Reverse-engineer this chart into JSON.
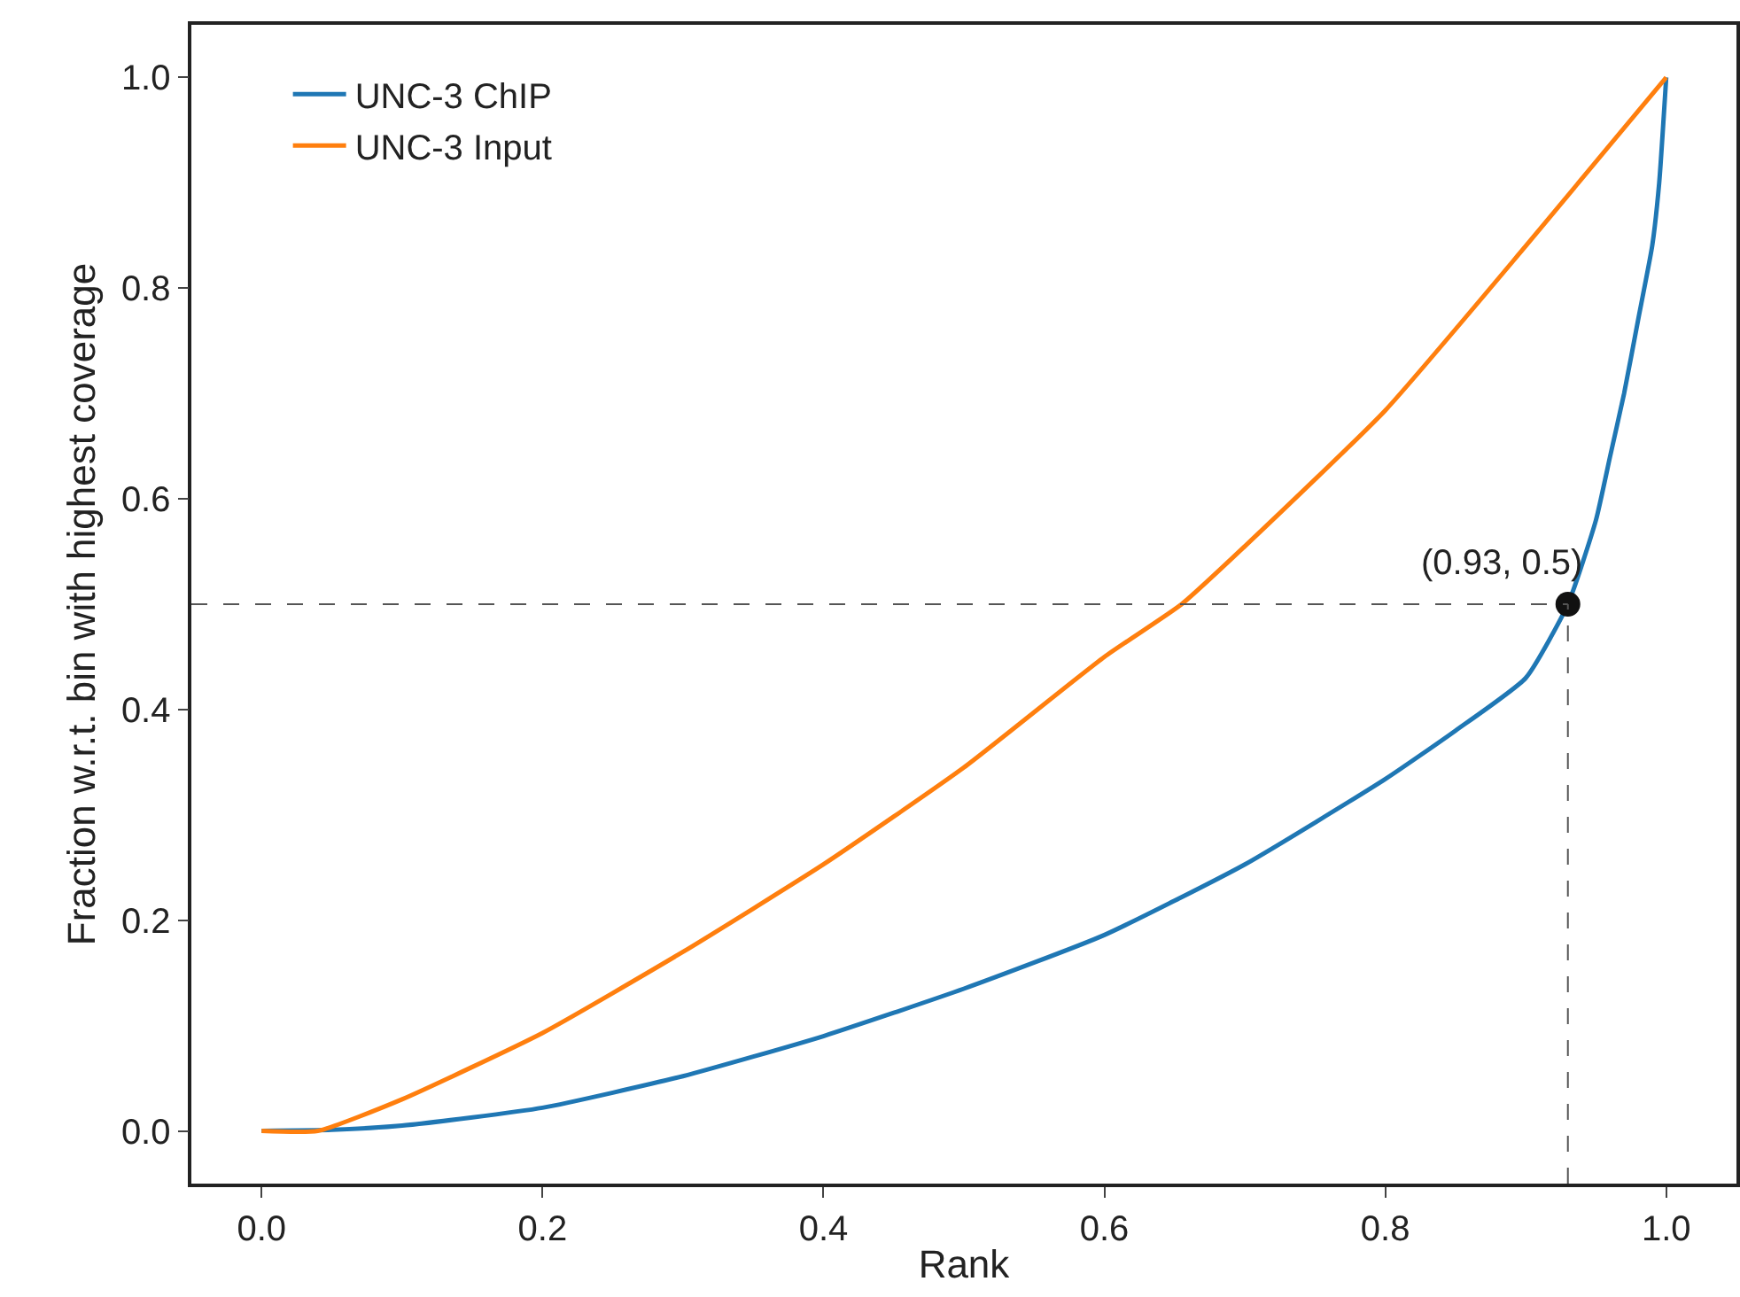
{
  "chart_data": {
    "type": "line",
    "xlabel": "Rank",
    "ylabel": "Fraction w.r.t. bin with highest coverage",
    "xlim": [
      -0.05,
      1.05
    ],
    "ylim": [
      -0.05,
      1.05
    ],
    "xticks": [
      {
        "value": 0,
        "label": "0.0"
      },
      0.2,
      0.4,
      0.6,
      0.8,
      {
        "value": 1,
        "label": "1.0"
      }
    ],
    "yticks": [
      {
        "value": 0,
        "label": "0.0"
      },
      0.2,
      0.4,
      0.6,
      0.8,
      {
        "value": 1,
        "label": "1.0"
      }
    ],
    "grid": false,
    "legend": "top left",
    "marker": "none",
    "line_style": "solid",
    "series": [
      {
        "name": "UNC-3 ChIP",
        "color": "#1f77b4",
        "x": [
          0,
          0.05,
          0.1,
          0.2,
          0.3,
          0.4,
          0.5,
          0.6,
          0.7,
          0.8,
          0.85,
          0.9,
          0.93,
          0.95,
          0.96,
          0.97,
          0.98,
          0.99,
          0.995,
          1.0
        ],
        "values": [
          0,
          0.001,
          0.005,
          0.022,
          0.052,
          0.09,
          0.135,
          0.186,
          0.253,
          0.334,
          0.38,
          0.43,
          0.5,
          0.58,
          0.64,
          0.7,
          0.77,
          0.84,
          0.9,
          1.0
        ]
      },
      {
        "name": "UNC-3 Input",
        "color": "#ff7f0e",
        "x": [
          0,
          0.04,
          0.1,
          0.2,
          0.3,
          0.4,
          0.5,
          0.6,
          0.655,
          0.7,
          0.8,
          0.9,
          1.0
        ],
        "values": [
          0,
          0,
          0.03,
          0.093,
          0.17,
          0.253,
          0.345,
          0.45,
          0.5,
          0.555,
          0.684,
          0.84,
          1.0
        ]
      },
      {
        "type": "scatter",
        "marker": "circle",
        "color": "#111111",
        "x": [
          0.93
        ],
        "values": [
          0.5
        ]
      }
    ],
    "ref_lines": [
      {
        "axis": "y",
        "value": 0.5,
        "color": "#555555",
        "line_style": "dashed"
      },
      {
        "axis": "x",
        "value": 0.93,
        "color": "#555555",
        "line_style": "dashed"
      }
    ],
    "annotations": [
      {
        "text": "(0.93, 0.5)",
        "x": 0.93,
        "y": 0.5
      }
    ]
  }
}
